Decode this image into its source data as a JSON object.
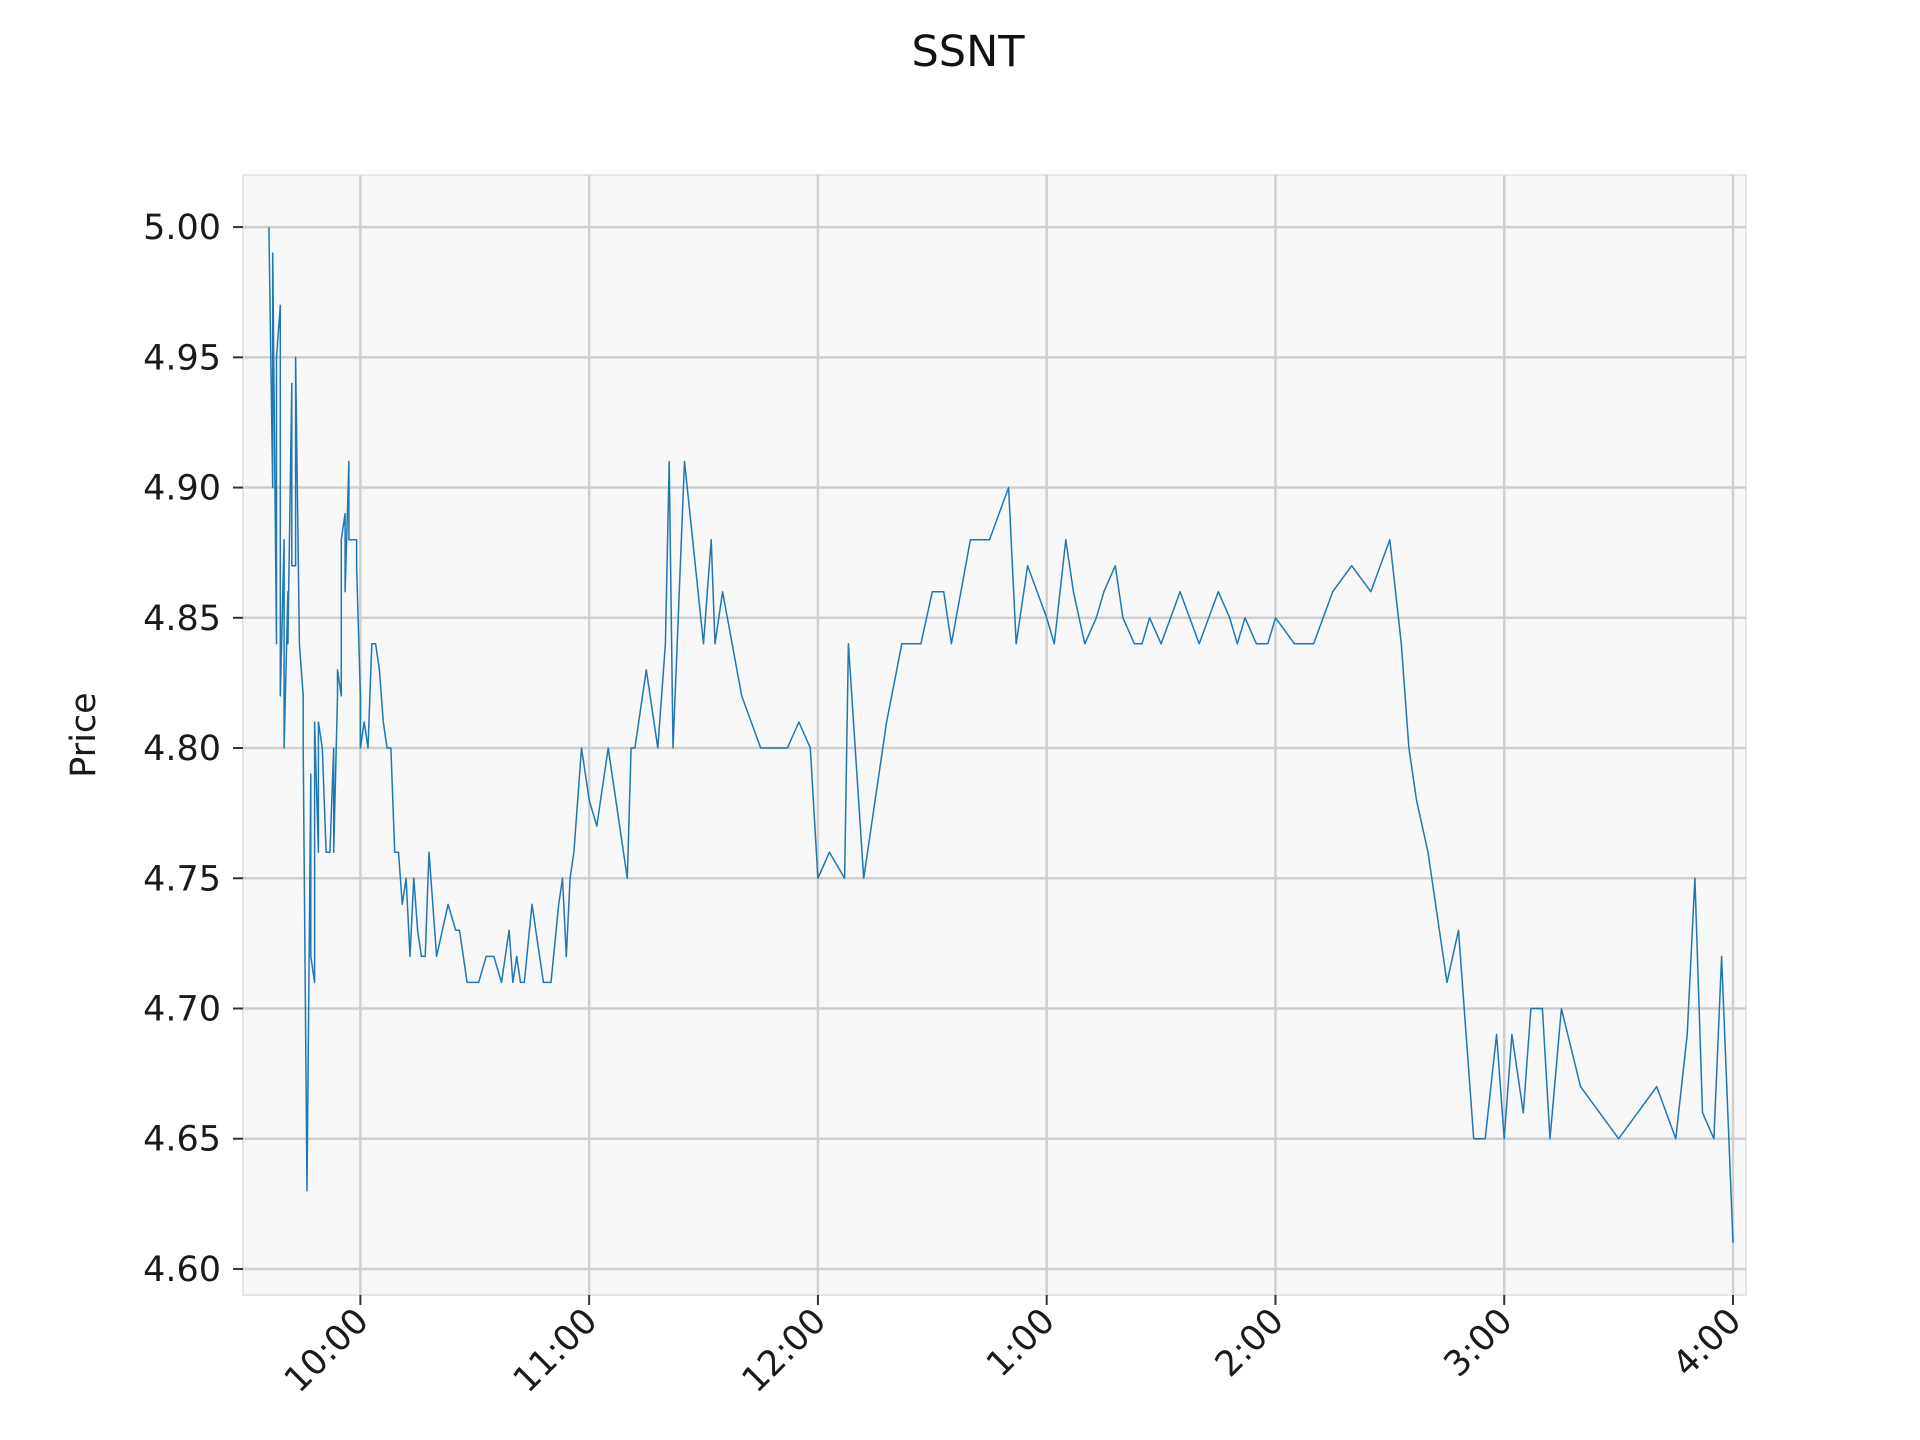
{
  "chart_data": {
    "type": "line",
    "title": "SSNT",
    "xlabel": "",
    "ylabel": "Price",
    "ylim": [
      4.59,
      5.02
    ],
    "xlim": [
      "09:30",
      "16:00"
    ],
    "grid": true,
    "x_ticks": [
      {
        "value": "10:00",
        "label": "10:00"
      },
      {
        "value": "11:00",
        "label": "11:00"
      },
      {
        "value": "12:00",
        "label": "12:00"
      },
      {
        "value": "13:00",
        "label": "1:00"
      },
      {
        "value": "14:00",
        "label": "2:00"
      },
      {
        "value": "15:00",
        "label": "3:00"
      },
      {
        "value": "16:00",
        "label": "4:00"
      }
    ],
    "y_ticks": [
      {
        "value": 4.6,
        "label": "4.60"
      },
      {
        "value": 4.65,
        "label": "4.65"
      },
      {
        "value": 4.7,
        "label": "4.70"
      },
      {
        "value": 4.75,
        "label": "4.75"
      },
      {
        "value": 4.8,
        "label": "4.80"
      },
      {
        "value": 4.85,
        "label": "4.85"
      },
      {
        "value": 4.9,
        "label": "4.90"
      },
      {
        "value": 4.95,
        "label": "4.95"
      },
      {
        "value": 5.0,
        "label": "5.00"
      }
    ],
    "colors": {
      "line": "#1f77b4",
      "plot_bg": "#f8f8f8",
      "grid": "#d0d0d0"
    },
    "series": [
      {
        "name": "",
        "x": [
          "09:36",
          "09:37",
          "09:37",
          "09:38",
          "09:38",
          "09:39",
          "09:39",
          "09:40",
          "09:40",
          "09:41",
          "09:41",
          "09:42",
          "09:42",
          "09:43",
          "09:43",
          "09:44",
          "09:44",
          "09:45",
          "09:45",
          "09:46",
          "09:46",
          "09:47",
          "09:47",
          "09:48",
          "09:48",
          "09:49",
          "09:49",
          "09:50",
          "09:51",
          "09:52",
          "09:53",
          "09:53",
          "09:54",
          "09:54",
          "09:55",
          "09:55",
          "09:56",
          "09:56",
          "09:57",
          "09:57",
          "09:58",
          "09:59",
          "09:59",
          "10:00",
          "10:00",
          "10:01",
          "10:01",
          "10:02",
          "10:03",
          "10:04",
          "10:05",
          "10:06",
          "10:07",
          "10:08",
          "10:09",
          "10:10",
          "10:11",
          "10:12",
          "10:13",
          "10:14",
          "10:15",
          "10:16",
          "10:17",
          "10:18",
          "10:20",
          "10:23",
          "10:25",
          "10:26",
          "10:27",
          "10:28",
          "10:29",
          "10:30",
          "10:31",
          "10:33",
          "10:35",
          "10:37",
          "10:39",
          "10:40",
          "10:40",
          "10:41",
          "10:42",
          "10:43",
          "10:45",
          "10:48",
          "10:50",
          "10:52",
          "10:53",
          "10:54",
          "10:55",
          "10:56",
          "10:58",
          "11:00",
          "11:02",
          "11:05",
          "11:10",
          "11:11",
          "11:12",
          "11:15",
          "11:18",
          "11:20",
          "11:21",
          "11:22",
          "11:25",
          "11:30",
          "11:32",
          "11:33",
          "11:35",
          "11:40",
          "11:45",
          "11:50",
          "11:52",
          "11:55",
          "11:58",
          "12:00",
          "12:03",
          "12:07",
          "12:08",
          "12:12",
          "12:18",
          "12:22",
          "12:27",
          "12:30",
          "12:33",
          "12:35",
          "12:40",
          "12:45",
          "12:50",
          "12:52",
          "12:55",
          "13:00",
          "13:02",
          "13:05",
          "13:07",
          "13:10",
          "13:13",
          "13:15",
          "13:18",
          "13:20",
          "13:23",
          "13:25",
          "13:27",
          "13:30",
          "13:35",
          "13:40",
          "13:45",
          "13:48",
          "13:50",
          "13:52",
          "13:55",
          "13:58",
          "14:00",
          "14:05",
          "14:10",
          "14:15",
          "14:20",
          "14:25",
          "14:30",
          "14:33",
          "14:35",
          "14:37",
          "14:40",
          "14:45",
          "14:48",
          "14:52",
          "14:55",
          "14:58",
          "15:00",
          "15:02",
          "15:05",
          "15:07",
          "15:10",
          "15:12",
          "15:15",
          "15:20",
          "15:25",
          "15:30",
          "15:35",
          "15:40",
          "15:45",
          "15:48",
          "15:50",
          "15:52",
          "15:55",
          "15:57",
          "16:00"
        ],
        "values": [
          5.0,
          4.9,
          4.99,
          4.84,
          4.95,
          4.97,
          4.82,
          4.88,
          4.8,
          4.86,
          4.84,
          4.94,
          4.87,
          4.87,
          4.95,
          4.84,
          4.84,
          4.82,
          4.8,
          4.63,
          4.63,
          4.79,
          4.72,
          4.71,
          4.81,
          4.76,
          4.81,
          4.8,
          4.76,
          4.76,
          4.8,
          4.76,
          4.82,
          4.83,
          4.82,
          4.88,
          4.89,
          4.86,
          4.91,
          4.88,
          4.88,
          4.88,
          4.87,
          4.82,
          4.8,
          4.81,
          4.81,
          4.8,
          4.84,
          4.84,
          4.83,
          4.81,
          4.8,
          4.8,
          4.76,
          4.76,
          4.74,
          4.75,
          4.72,
          4.75,
          4.73,
          4.72,
          4.72,
          4.76,
          4.72,
          4.74,
          4.73,
          4.73,
          4.72,
          4.71,
          4.71,
          4.71,
          4.71,
          4.72,
          4.72,
          4.71,
          4.73,
          4.71,
          4.71,
          4.72,
          4.71,
          4.71,
          4.74,
          4.71,
          4.71,
          4.74,
          4.75,
          4.72,
          4.75,
          4.76,
          4.8,
          4.78,
          4.77,
          4.8,
          4.75,
          4.8,
          4.8,
          4.83,
          4.8,
          4.84,
          4.91,
          4.8,
          4.91,
          4.84,
          4.88,
          4.84,
          4.86,
          4.82,
          4.8,
          4.8,
          4.8,
          4.81,
          4.8,
          4.75,
          4.76,
          4.75,
          4.84,
          4.75,
          4.81,
          4.84,
          4.84,
          4.86,
          4.86,
          4.84,
          4.88,
          4.88,
          4.9,
          4.84,
          4.87,
          4.85,
          4.84,
          4.88,
          4.86,
          4.84,
          4.85,
          4.86,
          4.87,
          4.85,
          4.84,
          4.84,
          4.85,
          4.84,
          4.86,
          4.84,
          4.86,
          4.85,
          4.84,
          4.85,
          4.84,
          4.84,
          4.85,
          4.84,
          4.84,
          4.86,
          4.87,
          4.86,
          4.88,
          4.84,
          4.8,
          4.78,
          4.76,
          4.71,
          4.73,
          4.65,
          4.65,
          4.69,
          4.65,
          4.69,
          4.66,
          4.7,
          4.7,
          4.65,
          4.7,
          4.67,
          4.66,
          4.65,
          4.66,
          4.67,
          4.65,
          4.69,
          4.75,
          4.66,
          4.65,
          4.72,
          4.61
        ]
      }
    ]
  }
}
